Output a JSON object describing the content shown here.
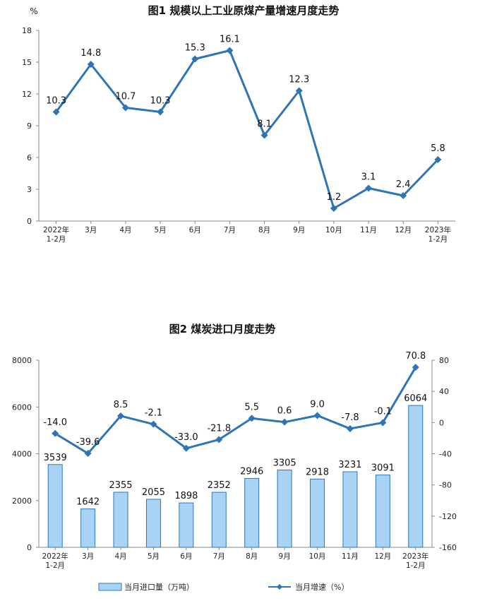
{
  "chart_data": [
    {
      "type": "line",
      "title": "图1 规模以上工业原煤产量增速月度走势",
      "ylabel": "%",
      "ylim": [
        0,
        18
      ],
      "yticks": [
        "0",
        "3",
        "6",
        "9",
        "12",
        "15",
        "18"
      ],
      "categories": [
        [
          "2022年",
          "1-2月"
        ],
        [
          "3月"
        ],
        [
          "4月"
        ],
        [
          "5月"
        ],
        [
          "6月"
        ],
        [
          "7月"
        ],
        [
          "8月"
        ],
        [
          "9月"
        ],
        [
          "10月"
        ],
        [
          "11月"
        ],
        [
          "12月"
        ],
        [
          "2023年",
          "1-2月"
        ]
      ],
      "values": [
        10.3,
        14.8,
        10.7,
        10.3,
        15.3,
        16.1,
        8.1,
        12.3,
        1.2,
        3.1,
        2.4,
        5.8
      ],
      "value_labels": [
        "10.3",
        "14.8",
        "10.7",
        "10.3",
        "15.3",
        "16.1",
        "8.1",
        "12.3",
        "1.2",
        "3.1",
        "2.4",
        "5.8"
      ],
      "color": "#2E75B6",
      "grid": false
    },
    {
      "type": "bar",
      "title": "图2 煤炭进口月度走势",
      "categories": [
        [
          "2022年",
          "1-2月"
        ],
        [
          "3月"
        ],
        [
          "4月"
        ],
        [
          "5月"
        ],
        [
          "6月"
        ],
        [
          "7月"
        ],
        [
          "8月"
        ],
        [
          "9月"
        ],
        [
          "10月"
        ],
        [
          "11月"
        ],
        [
          "12月"
        ],
        [
          "2023年",
          "1-2月"
        ]
      ],
      "ylim_left": [
        0,
        8000
      ],
      "yticks_left": [
        "0",
        "2000",
        "4000",
        "6000",
        "8000"
      ],
      "ylim_right": [
        -160,
        80
      ],
      "yticks_right": [
        "80",
        "40",
        "0",
        "-40",
        "-80",
        "-120",
        "-160"
      ],
      "legend_position": "bottom",
      "series": [
        {
          "name": "当月进口量（万吨）",
          "type": "bar",
          "axis": "left",
          "values": [
            3539,
            1642,
            2355,
            2055,
            1898,
            2352,
            2946,
            3305,
            2918,
            3231,
            3091,
            6064
          ],
          "value_labels": [
            "3539",
            "1642",
            "2355",
            "2055",
            "1898",
            "2352",
            "2946",
            "3305",
            "2918",
            "3231",
            "3091",
            "6064"
          ],
          "color": "#A9D3F5",
          "border": "#2E75B6"
        },
        {
          "name": "当月增速（%）",
          "type": "line",
          "axis": "right",
          "values": [
            -14.0,
            -39.6,
            8.5,
            -2.1,
            -33.0,
            -21.8,
            5.5,
            0.6,
            9.0,
            -7.8,
            -0.1,
            70.8
          ],
          "value_labels": [
            "-14.0",
            "-39.6",
            "8.5",
            "-2.1",
            "-33.0",
            "-21.8",
            "5.5",
            "0.6",
            "9.0",
            "-7.8",
            "-0.1",
            "70.8"
          ],
          "color": "#2E75B6"
        }
      ],
      "grid": false
    }
  ]
}
